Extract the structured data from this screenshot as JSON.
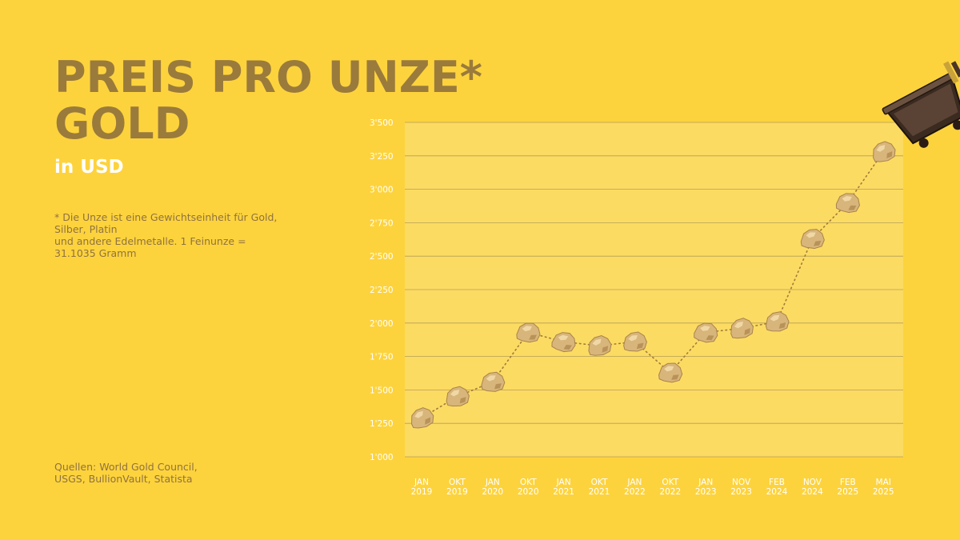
{
  "title_line1": "PREIS PRO UNZE*",
  "title_line2": "GOLD",
  "subtitle": "in USD",
  "footnote_lines": [
    "* Die Unze ist eine Gewichtseinheit für Gold,",
    "Silber, Platin",
    "und andere Edelmetalle. 1 Feinunze =",
    "31.1035 Gramm"
  ],
  "sources_lines": [
    "Quellen: World Gold Council,",
    "USGS, BullionVault, Statista"
  ],
  "colors": {
    "background": "#fdd33d",
    "plot_area": "#fcdb63",
    "title": "#9a7b3c",
    "nugget": "#d8b57a",
    "dotted_line": "#a07b3a"
  },
  "icons": [
    "gold-nugget-icon",
    "mine-cart-icon"
  ],
  "chart_data": {
    "type": "line",
    "marker": "gold-nugget",
    "line_style": "dotted",
    "categories": [
      [
        "JAN",
        "2019"
      ],
      [
        "OKT",
        "2019"
      ],
      [
        "JAN",
        "2020"
      ],
      [
        "OKT",
        "2020"
      ],
      [
        "JAN",
        "2021"
      ],
      [
        "OKT",
        "2021"
      ],
      [
        "JAN",
        "2022"
      ],
      [
        "OKT",
        "2022"
      ],
      [
        "JAN",
        "2023"
      ],
      [
        "NOV",
        "2023"
      ],
      [
        "FEB",
        "2024"
      ],
      [
        "NOV",
        "2024"
      ],
      [
        "FEB",
        "2025"
      ],
      [
        "MAI",
        "2025"
      ]
    ],
    "values": [
      1290,
      1450,
      1560,
      1930,
      1860,
      1830,
      1860,
      1630,
      1930,
      1960,
      2010,
      2630,
      2900,
      3280
    ],
    "ylim": [
      1000,
      3500
    ],
    "yticks": [
      "1'000",
      "1'250",
      "1'500",
      "1'750",
      "2'000",
      "2'250",
      "2'500",
      "2'750",
      "3'000",
      "3'250",
      "3'500"
    ],
    "ytick_values": [
      1000,
      1250,
      1500,
      1750,
      2000,
      2250,
      2500,
      2750,
      3000,
      3250,
      3500
    ],
    "grid": true
  }
}
